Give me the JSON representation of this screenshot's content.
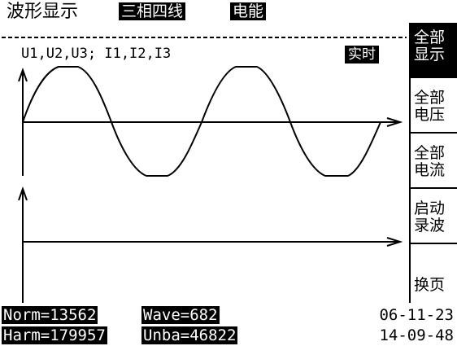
{
  "header": {
    "title": "波形显示",
    "mode_tag": "三相四线",
    "energy_tag": "电能"
  },
  "plot": {
    "channels_label": "U1,U2,U3; I1,I2,I3",
    "realtime_badge": "实时",
    "upper_waveform": "sine",
    "lower_waveform": "flat"
  },
  "sidebar": {
    "items": [
      {
        "line1": "全部",
        "line2": "显示",
        "active": true
      },
      {
        "line1": "全部",
        "line2": "电压",
        "active": false
      },
      {
        "line1": "全部",
        "line2": "电流",
        "active": false
      },
      {
        "line1": "启动",
        "line2": "录波",
        "active": false
      },
      {
        "line1": "",
        "line2": "换页",
        "active": false
      }
    ]
  },
  "status": {
    "norm": "Norm=13562",
    "harm": "Harm=179957",
    "wave": "Wave=682",
    "unba": "Unba=46822",
    "date": "06-11-23",
    "time": "14-09-48"
  }
}
